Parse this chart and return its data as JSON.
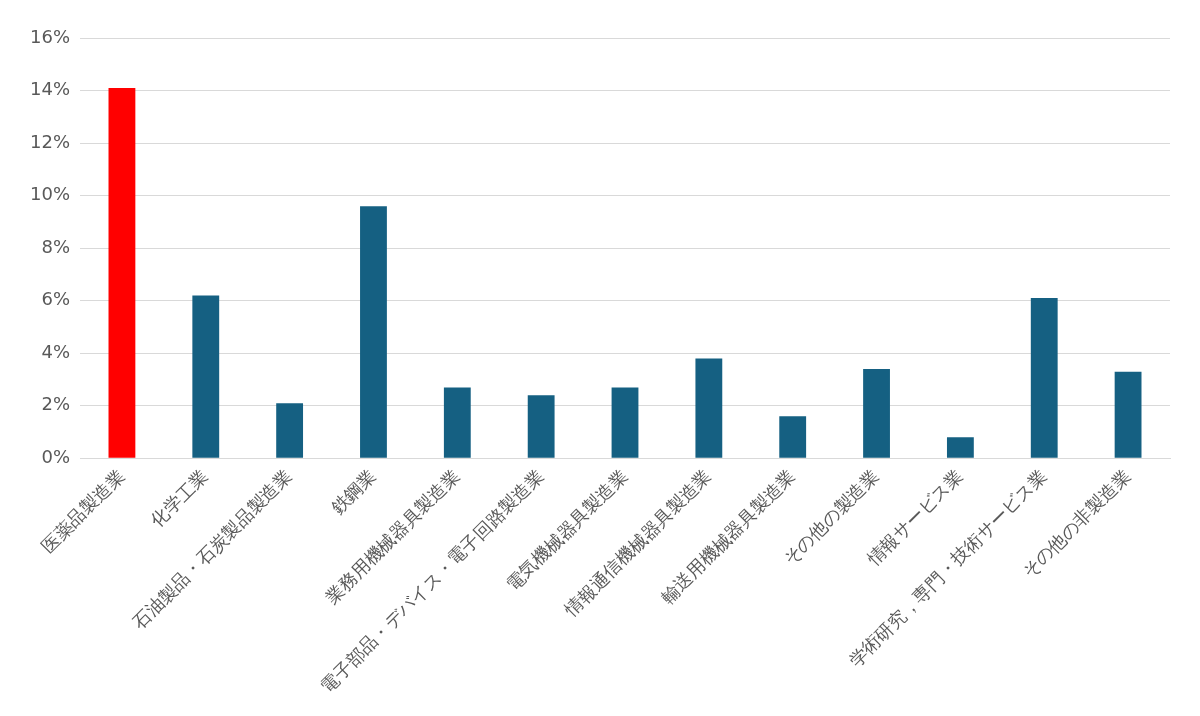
{
  "chart_data": {
    "type": "bar",
    "categories": [
      "医薬品製造業",
      "化学工業",
      "石油製品・石炭製品製造業",
      "鉄鋼業",
      "業務用機械器具製造業",
      "電子部品・デバイス・電子回路製造業",
      "電気機械器具製造業",
      "情報通信機械器具製造業",
      "輸送用機械器具製造業",
      "その他の製造業",
      "情報サービス業",
      "学術研究，専門・技術サービス業",
      "その他の非製造業"
    ],
    "values": [
      14.1,
      6.2,
      2.1,
      9.6,
      2.7,
      2.4,
      2.7,
      3.8,
      1.6,
      3.4,
      0.8,
      6.1,
      3.3
    ],
    "colors": [
      "#ff0000",
      "#156082",
      "#156082",
      "#156082",
      "#156082",
      "#156082",
      "#156082",
      "#156082",
      "#156082",
      "#156082",
      "#156082",
      "#156082",
      "#156082"
    ],
    "ylim": [
      0,
      16
    ],
    "yticks": [
      {
        "value": 0,
        "label": "0%"
      },
      {
        "value": 2,
        "label": "2%"
      },
      {
        "value": 4,
        "label": "4%"
      },
      {
        "value": 6,
        "label": "6%"
      },
      {
        "value": 8,
        "label": "8%"
      },
      {
        "value": 10,
        "label": "10%"
      },
      {
        "value": 12,
        "label": "12%"
      },
      {
        "value": 14,
        "label": "14%"
      },
      {
        "value": 16,
        "label": "16%"
      }
    ],
    "grid": "y",
    "legend": false
  }
}
